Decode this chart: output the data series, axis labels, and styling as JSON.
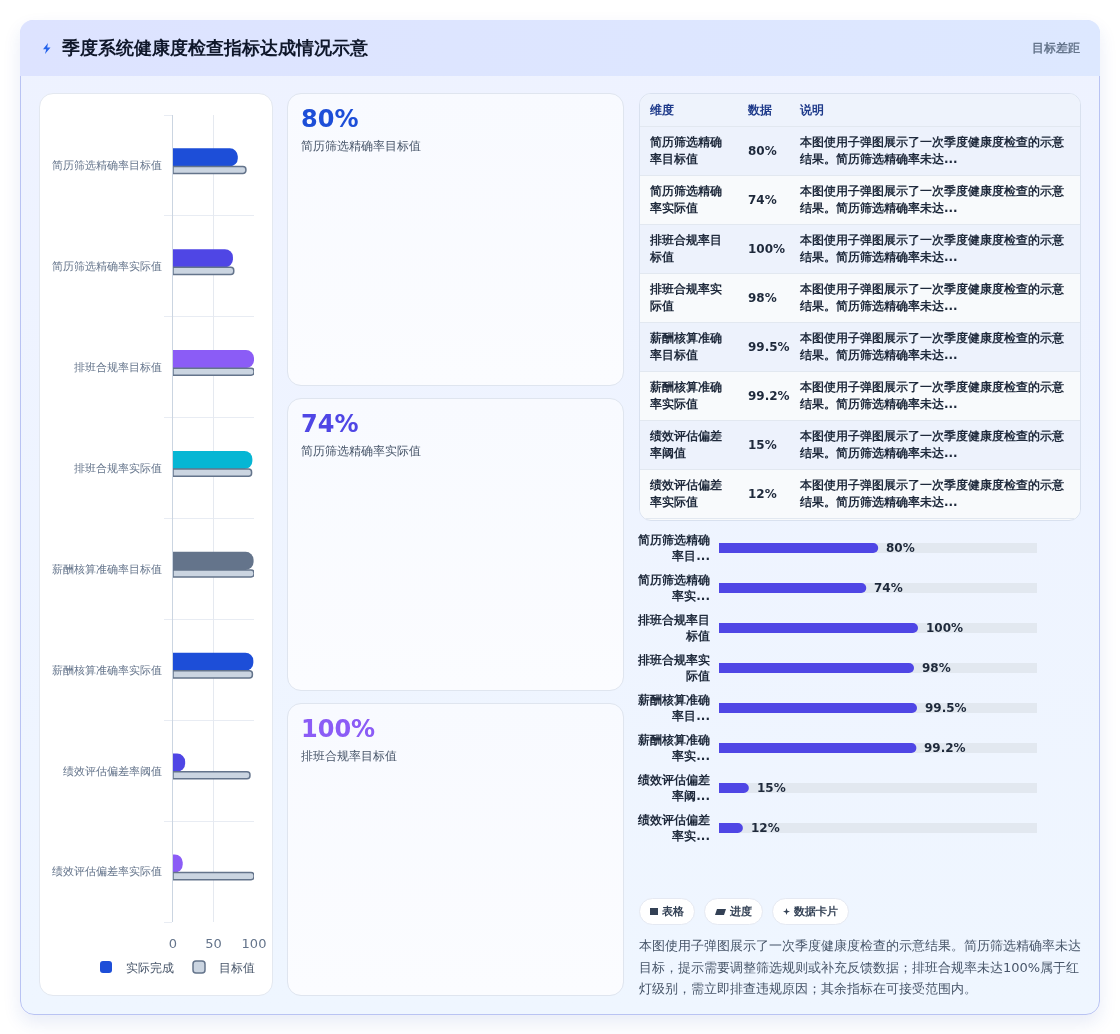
{
  "chart_data": [
    {
      "type": "other",
      "title": "季度系统健康度检查指标达成情况示意",
      "subtitle": "目标差距"
    },
    {
      "type": "bar",
      "orientation": "horizontal",
      "categories": [
        "简历筛选精确率目标值",
        "简历筛选精确率实际值",
        "排班合规率目标值",
        "排班合规率实际值",
        "薪酬核算准确率目标值",
        "薪酬核算准确率实际值",
        "绩效评估偏差率阈值",
        "绩效评估偏差率实际值"
      ],
      "series": [
        {
          "name": "实际完成",
          "colors": [
            "#1d4ed8",
            "#4f46e5",
            "#8b5cf6",
            "#06b6d4",
            "#64748b",
            "#1d4ed8",
            "#4f46e5",
            "#8b5cf6"
          ],
          "values": [
            80,
            74,
            100,
            98,
            99.5,
            99.2,
            15,
            12
          ]
        },
        {
          "name": "目标值",
          "color": "#cbd5e1",
          "values": [
            90,
            75,
            100,
            97,
            100,
            98,
            95,
            100
          ]
        }
      ],
      "xlim": [
        0,
        100
      ],
      "xticks": [
        0,
        50,
        100
      ],
      "grid": true,
      "legend": "bottom"
    },
    {
      "type": "other",
      "categories": [
        "简历筛选精确率目标值",
        "简历筛选精确率实际值",
        "排班合规率目标值"
      ],
      "values": [
        80,
        74,
        100
      ],
      "value_labels": [
        "80%",
        "74%",
        "100%"
      ]
    },
    {
      "type": "other",
      "categories": [
        "简历筛选精确率目标值",
        "简历筛选精确率实际值",
        "排班合规率目标值",
        "排班合规率实际值",
        "薪酬核算准确率目标值",
        "薪酬核算准确率实际值",
        "绩效评估偏差率阈值",
        "绩效评估偏差率实际值"
      ],
      "values": [
        80,
        74,
        100,
        98,
        99.5,
        99.2,
        15,
        12
      ],
      "value_labels": [
        "80%",
        "74%",
        "100%",
        "98%",
        "99.5%",
        "99.2%",
        "15%",
        "12%"
      ],
      "annotations": [
        "维度",
        "数据",
        "说明",
        "本图使用子弹图展示了一次季度健康度检查的示意结果。简历筛选精确率未达...",
        "本图使用子弹图展示了一次季度健康度检查的示意结果。简历筛选精确率未达...",
        "本图使用子弹图展示了一次季度健康度检查的示意结果。简历筛选精确率未达...",
        "本图使用子弹图展示了一次季度健康度检查的示意结果。简历筛选精确率未达...",
        "本图使用子弹图展示了一次季度健康度检查的示意结果。简历筛选精确率未达...",
        "本图使用子弹图展示了一次季度健康度检查的示意结果。简历筛选精确率未达...",
        "本图使用子弹图展示了一次季度健康度检查的示意结果。简历筛选精确率未达...",
        "本图使用子弹图展示了一次季度健康度检查的示意结果。简历筛选精确率未达..."
      ]
    },
    {
      "type": "bar",
      "orientation": "horizontal",
      "categories": [
        "简历筛选精确率目...",
        "简历筛选精确率实...",
        "排班合规率目标值",
        "排班合规率实际值",
        "薪酬核算准确率目...",
        "薪酬核算准确率实...",
        "绩效评估偏差率阈...",
        "绩效评估偏差率实..."
      ],
      "values": [
        80,
        74,
        100,
        98,
        99.5,
        99.2,
        15,
        12
      ],
      "value_labels": [
        "80%",
        "74%",
        "100%",
        "98%",
        "99.5%",
        "99.2%",
        "15%",
        "12%"
      ],
      "color": "#4f46e5",
      "tick_labels": "y"
    },
    {
      "type": "other",
      "annotations": [
        "表格",
        "进度",
        "数据卡片",
        "本图使用子弹图展示了一次季度健康度检查的示意结果。简历筛选精确率未达目标，提示需要调整筛选规则或补充反馈数据；排班合规率未达100%属于红灯级别，需立即排查违规原因；其余指标在可接受范围内。"
      ]
    }
  ]
}
